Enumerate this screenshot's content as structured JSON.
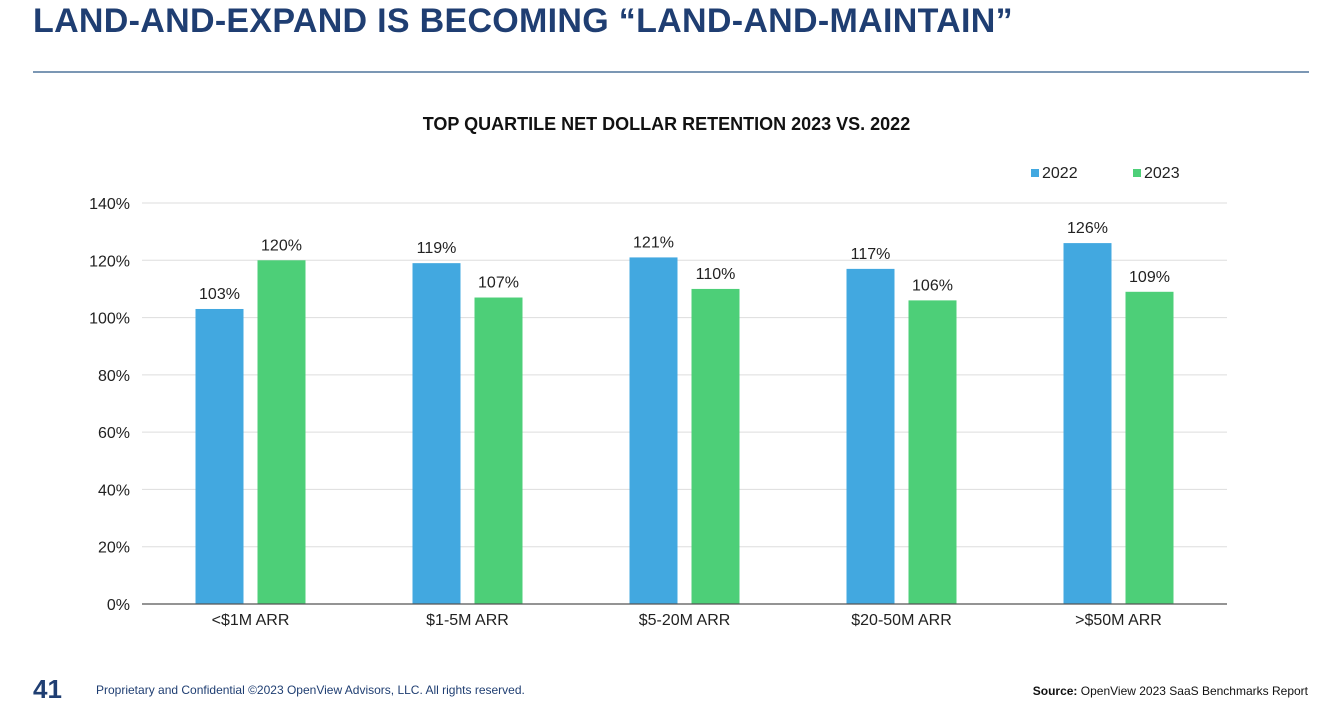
{
  "header": {
    "title": "LAND-AND-EXPAND IS BECOMING “LAND-AND-MAINTAIN”"
  },
  "colors": {
    "title": "#1f3e72",
    "rule": "#7b97b4",
    "series_2022": "#42a8e0",
    "series_2023": "#4dcf78",
    "grid": "#dddddd",
    "axis_text": "#222222",
    "footer": "#1f3e72"
  },
  "chart_data": {
    "type": "bar",
    "title": "TOP QUARTILE NET DOLLAR RETENTION 2023 VS. 2022",
    "categories": [
      "<$1M ARR",
      "$1-5M ARR",
      "$5-20M ARR",
      "$20-50M ARR",
      ">$50M ARR"
    ],
    "series": [
      {
        "name": "2022",
        "values": [
          103,
          119,
          121,
          117,
          126
        ],
        "labels": [
          "103%",
          "119%",
          "121%",
          "117%",
          "126%"
        ]
      },
      {
        "name": "2023",
        "values": [
          120,
          107,
          110,
          106,
          109
        ],
        "labels": [
          "120%",
          "107%",
          "110%",
          "106%",
          "109%"
        ]
      }
    ],
    "ylim": [
      0,
      140
    ],
    "yticks": [
      "0%",
      "20%",
      "40%",
      "60%",
      "80%",
      "100%",
      "120%",
      "140%"
    ],
    "grid": true,
    "legend": "top-right"
  },
  "footer": {
    "page_number": "41",
    "confidential": "Proprietary and Confidential ©2023 OpenView Advisors, LLC. All rights reserved.",
    "source_label": "Source:",
    "source_text": " OpenView 2023 SaaS Benchmarks Report"
  }
}
